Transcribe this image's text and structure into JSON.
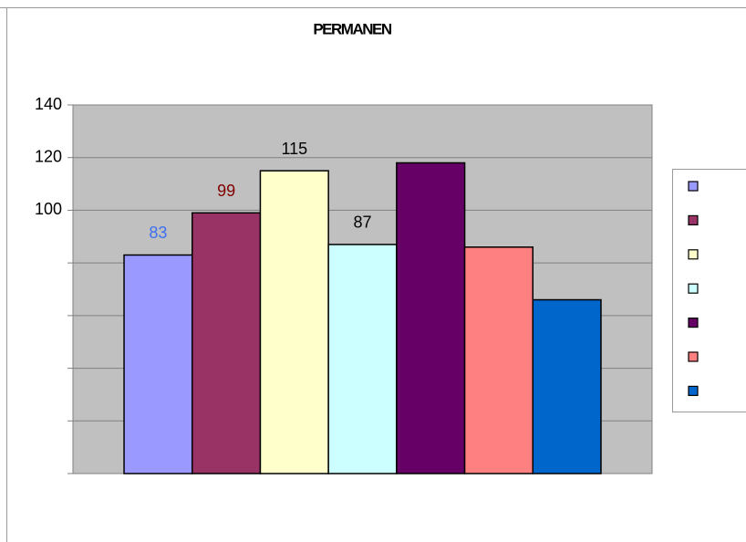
{
  "chart_data": {
    "type": "bar",
    "title": "PERMANEN",
    "categories": [
      null,
      null,
      null,
      null,
      null,
      null,
      null
    ],
    "values": [
      83,
      99,
      115,
      87,
      118,
      86,
      66
    ],
    "colors": [
      "#9999ff",
      "#993366",
      "#ffffcc",
      "#ccffff",
      "#660066",
      "#ff8080",
      "#0066cc"
    ],
    "show_value_labels": [
      true,
      true,
      true,
      true,
      false,
      false,
      false
    ],
    "value_label_colors": [
      "#3d6ff0",
      "#800000",
      "#000000",
      "#000000",
      "#000000",
      "#000000",
      "#000000"
    ],
    "ylim": [
      0,
      140
    ],
    "yticks": [
      {
        "value": 0,
        "label": null
      },
      {
        "value": 20,
        "label": null
      },
      {
        "value": 40,
        "label": null
      },
      {
        "value": 60,
        "label": null
      },
      {
        "value": 80,
        "label": null
      },
      100,
      120,
      140
    ],
    "grid": true,
    "plot_background": "#c0c0c0",
    "legend": "right"
  }
}
